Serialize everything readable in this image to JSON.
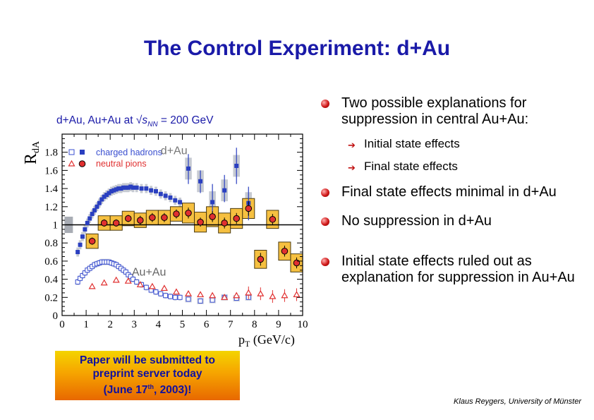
{
  "slide": {
    "title": "The Control Experiment: d+Au",
    "subtitle_prefix": "d+Au, Au+Au at √",
    "subtitle_var": "s",
    "subtitle_sub": "NN",
    "subtitle_suffix": " = 200 GeV",
    "bullets": [
      {
        "text": "Two possible explanations for suppression in central Au+Au:",
        "subs": [
          "Initial state effects",
          "Final state effects"
        ]
      },
      {
        "text": "Final state effects minimal in d+Au",
        "subs": []
      },
      {
        "text": "No suppression in d+Au",
        "subs": []
      },
      {
        "text": "Initial state effects ruled out as explanation for suppression in Au+Au",
        "subs": []
      }
    ],
    "note_line1": "Paper will be submitted to",
    "note_line2": "preprint server today",
    "note_line3a": "(June 17",
    "note_sup": "th",
    "note_line3b": ", 2003)!",
    "credit": "Klaus Reygers, University of Münster"
  },
  "colors": {
    "title": "#1a1aa8",
    "hadrons": "#2a3fc0",
    "pions": "#e03030",
    "band": "#f6c040",
    "grey_band": "#c6cad2"
  },
  "chart_data": {
    "type": "scatter",
    "ylabel": "R_dA",
    "ylabel_main": "R",
    "ylabel_sub": "dA",
    "xlabel_p": "p",
    "xlabel_sub": "T",
    "xlabel_rest": " (GeV/c)",
    "xlim": [
      0,
      10
    ],
    "ylim": [
      0,
      2.0
    ],
    "x_ticks": [
      "0",
      "1",
      "2",
      "3",
      "4",
      "5",
      "6",
      "7",
      "8",
      "9",
      "10"
    ],
    "y_ticks": [
      "0",
      "0.2",
      "0.4",
      "0.6",
      "0.8",
      "1",
      "1.2",
      "1.4",
      "1.6",
      "1.8"
    ],
    "legend": [
      {
        "label": "charged hadrons",
        "color": "#3a4fd0"
      },
      {
        "label": "neutral pions",
        "color": "#e03030"
      }
    ],
    "annotations": [
      "d+Au",
      "Au+Au"
    ],
    "series": [
      {
        "name": "charged hadrons",
        "x": [
          0.65,
          0.75,
          0.85,
          0.95,
          1.05,
          1.15,
          1.25,
          1.35,
          1.45,
          1.55,
          1.65,
          1.75,
          1.85,
          1.95,
          2.05,
          2.15,
          2.25,
          2.35,
          2.45,
          2.55,
          2.65,
          2.75,
          2.85,
          2.95,
          3.1,
          3.3,
          3.5,
          3.7,
          3.9,
          4.1,
          4.3,
          4.5,
          4.7,
          4.9,
          5.25,
          5.75,
          6.25,
          6.75,
          7.25,
          7.75
        ],
        "y": [
          0.7,
          0.78,
          0.87,
          0.95,
          1.02,
          1.07,
          1.12,
          1.16,
          1.2,
          1.24,
          1.28,
          1.31,
          1.33,
          1.35,
          1.37,
          1.38,
          1.39,
          1.4,
          1.4,
          1.41,
          1.41,
          1.41,
          1.42,
          1.41,
          1.41,
          1.4,
          1.4,
          1.38,
          1.37,
          1.34,
          1.32,
          1.3,
          1.27,
          1.25,
          1.62,
          1.48,
          1.25,
          1.38,
          1.65,
          1.24
        ],
        "ylow": [
          0,
          0,
          0,
          0,
          0,
          0,
          0,
          0,
          0,
          0,
          0,
          0,
          0,
          0,
          0,
          0,
          0,
          0,
          0,
          0,
          0,
          0,
          0,
          0,
          0,
          0,
          0,
          0,
          0,
          0,
          0,
          0,
          0,
          0,
          1.45,
          1.35,
          1.05,
          1.25,
          1.45,
          1.05
        ],
        "yhigh": [
          0,
          0,
          0,
          0,
          0,
          0,
          0,
          0,
          0,
          0,
          0,
          0,
          0,
          0,
          0,
          0,
          0,
          0,
          0,
          0,
          0,
          0,
          0,
          0,
          0,
          0,
          0,
          0,
          0,
          0,
          0,
          0,
          0,
          0,
          1.78,
          1.6,
          1.45,
          1.55,
          1.85,
          1.42
        ]
      },
      {
        "name": "neutral pions",
        "x": [
          1.25,
          1.75,
          2.25,
          2.75,
          3.25,
          3.75,
          4.25,
          4.75,
          5.25,
          5.75,
          6.25,
          6.75,
          7.25,
          7.75,
          8.25,
          8.75,
          9.25,
          9.75
        ],
        "y": [
          0.82,
          1.02,
          1.02,
          1.07,
          1.05,
          1.08,
          1.08,
          1.12,
          1.13,
          1.03,
          1.09,
          1.02,
          1.07,
          1.18,
          0.62,
          1.06,
          0.71,
          0.58
        ],
        "ylow": [
          0.78,
          0.98,
          0.98,
          1.03,
          1.0,
          1.03,
          1.03,
          1.07,
          1.07,
          0.98,
          1.03,
          0.96,
          1.01,
          1.1,
          0.55,
          1.0,
          0.65,
          0.52
        ],
        "yhigh": [
          0.86,
          1.06,
          1.06,
          1.11,
          1.1,
          1.13,
          1.13,
          1.17,
          1.19,
          1.08,
          1.15,
          1.08,
          1.13,
          1.26,
          0.69,
          1.12,
          0.77,
          0.64
        ]
      },
      {
        "name": "Au+Au charged hadrons",
        "x": [
          0.65,
          0.75,
          0.85,
          0.95,
          1.05,
          1.15,
          1.25,
          1.35,
          1.45,
          1.55,
          1.65,
          1.75,
          1.85,
          1.95,
          2.05,
          2.15,
          2.25,
          2.35,
          2.45,
          2.55,
          2.65,
          2.75,
          2.85,
          2.95,
          3.1,
          3.3,
          3.5,
          3.7,
          3.9,
          4.1,
          4.3,
          4.5,
          4.7,
          4.9,
          5.25,
          5.75,
          6.25,
          6.75,
          7.25,
          7.75
        ],
        "y": [
          0.37,
          0.41,
          0.44,
          0.47,
          0.5,
          0.52,
          0.54,
          0.56,
          0.57,
          0.58,
          0.59,
          0.59,
          0.59,
          0.59,
          0.58,
          0.57,
          0.56,
          0.54,
          0.52,
          0.5,
          0.48,
          0.45,
          0.43,
          0.4,
          0.37,
          0.34,
          0.31,
          0.28,
          0.26,
          0.24,
          0.22,
          0.21,
          0.2,
          0.2,
          0.18,
          0.16,
          0.17,
          0.2,
          0.19,
          0.2
        ]
      },
      {
        "name": "Au+Au neutral pions",
        "x": [
          1.25,
          1.75,
          2.25,
          2.75,
          3.25,
          3.75,
          4.25,
          4.75,
          5.25,
          5.75,
          6.25,
          6.75,
          7.25,
          7.75,
          8.25,
          8.75,
          9.25,
          9.75
        ],
        "y": [
          0.32,
          0.36,
          0.39,
          0.38,
          0.34,
          0.32,
          0.3,
          0.26,
          0.24,
          0.23,
          0.22,
          0.2,
          0.22,
          0.25,
          0.24,
          0.21,
          0.22,
          0.23
        ]
      }
    ]
  }
}
